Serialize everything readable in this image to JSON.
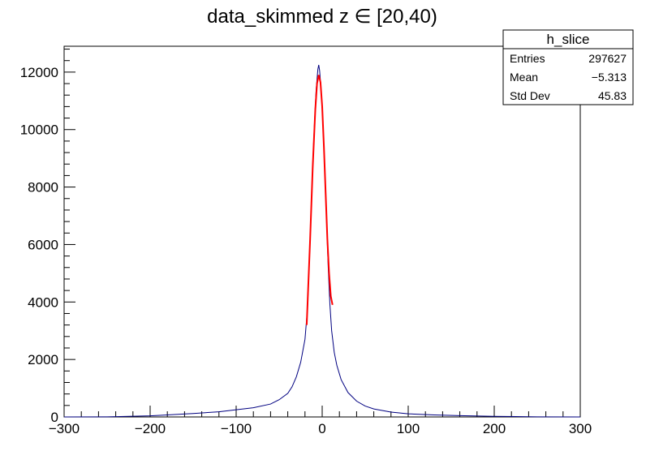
{
  "chart_data": {
    "type": "histogram",
    "title": "data_skimmed z  ∈ [20,40)",
    "xlabel": "",
    "ylabel": "",
    "xlim": [
      -300,
      300
    ],
    "ylim": [
      0,
      12900
    ],
    "x_ticks": [
      -300,
      -200,
      -100,
      0,
      100,
      200,
      300
    ],
    "x_tick_labels": [
      "−300",
      "−200",
      "−100",
      "0",
      "100",
      "200",
      "300"
    ],
    "y_ticks": [
      0,
      2000,
      4000,
      6000,
      8000,
      10000,
      12000
    ],
    "y_tick_labels": [
      "0",
      "2000",
      "4000",
      "6000",
      "8000",
      "10000",
      "12000"
    ],
    "grid": false,
    "stats_box": {
      "placement": "top-right",
      "name": "h_slice",
      "rows": [
        {
          "label": "Entries",
          "value": "297627"
        },
        {
          "label": "Mean",
          "value": "−5.313"
        },
        {
          "label": "Std Dev",
          "value": "45.83"
        }
      ]
    },
    "series": [
      {
        "kind": "histogram",
        "color": "#000080",
        "points": [
          [
            -300,
            0
          ],
          [
            -250,
            5
          ],
          [
            -200,
            40
          ],
          [
            -180,
            70
          ],
          [
            -150,
            120
          ],
          [
            -120,
            180
          ],
          [
            -100,
            250
          ],
          [
            -80,
            320
          ],
          [
            -60,
            450
          ],
          [
            -50,
            600
          ],
          [
            -40,
            820
          ],
          [
            -35,
            1050
          ],
          [
            -30,
            1400
          ],
          [
            -25,
            1900
          ],
          [
            -20,
            2700
          ],
          [
            -17,
            3800
          ],
          [
            -15,
            5400
          ],
          [
            -13,
            7000
          ],
          [
            -11,
            8800
          ],
          [
            -9,
            10200
          ],
          [
            -7,
            11400
          ],
          [
            -5,
            12100
          ],
          [
            -4,
            12250
          ],
          [
            -3,
            12050
          ],
          [
            -1,
            11300
          ],
          [
            1,
            10100
          ],
          [
            3,
            8600
          ],
          [
            5,
            6900
          ],
          [
            7,
            5200
          ],
          [
            9,
            3900
          ],
          [
            11,
            3000
          ],
          [
            14,
            2250
          ],
          [
            17,
            1800
          ],
          [
            22,
            1300
          ],
          [
            30,
            850
          ],
          [
            40,
            550
          ],
          [
            50,
            380
          ],
          [
            60,
            280
          ],
          [
            80,
            170
          ],
          [
            100,
            110
          ],
          [
            130,
            70
          ],
          [
            160,
            45
          ],
          [
            200,
            20
          ],
          [
            250,
            5
          ],
          [
            300,
            0
          ]
        ]
      },
      {
        "kind": "fit",
        "color": "#ff0000",
        "points": [
          [
            -18,
            3200
          ],
          [
            -14,
            6200
          ],
          [
            -11,
            8700
          ],
          [
            -8,
            10700
          ],
          [
            -6,
            11600
          ],
          [
            -4,
            11900
          ],
          [
            -2,
            11650
          ],
          [
            0,
            10800
          ],
          [
            2,
            9400
          ],
          [
            4,
            7800
          ],
          [
            6,
            6200
          ],
          [
            8,
            5000
          ],
          [
            10,
            4200
          ],
          [
            12,
            3900
          ]
        ]
      }
    ]
  }
}
